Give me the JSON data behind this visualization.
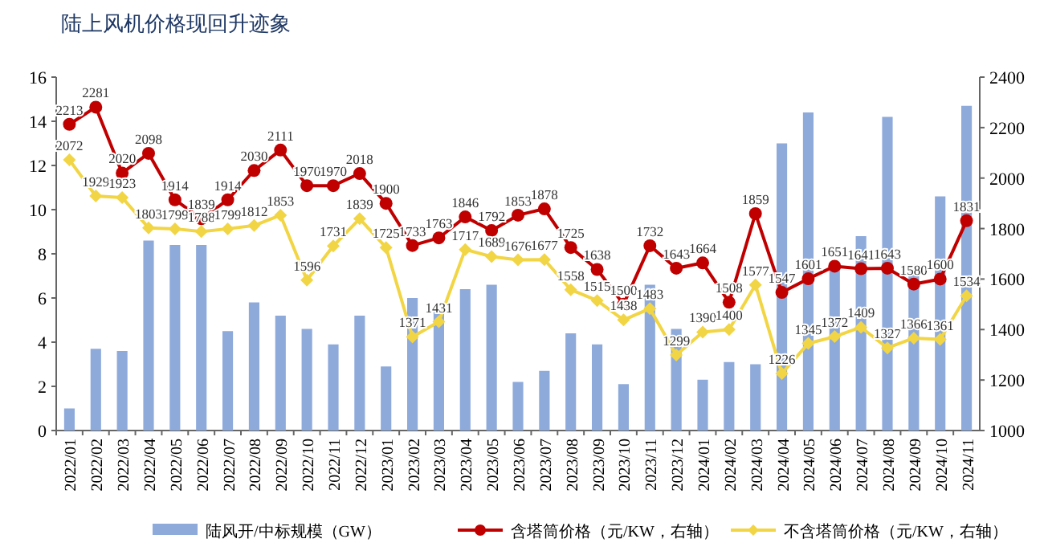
{
  "chart_data": {
    "type": "bar",
    "title": "陆上风机价格现回升迹象",
    "categories": [
      "2022/01",
      "2022/02",
      "2022/03",
      "2022/04",
      "2022/05",
      "2022/06",
      "2022/07",
      "2022/08",
      "2022/09",
      "2022/10",
      "2022/11",
      "2022/12",
      "2023/01",
      "2023/02",
      "2023/03",
      "2023/04",
      "2023/05",
      "2023/06",
      "2023/07",
      "2023/08",
      "2023/09",
      "2023/10",
      "2023/11",
      "2023/12",
      "2024/01",
      "2024/02",
      "2024/03",
      "2024/04",
      "2024/05",
      "2024/06",
      "2024/07",
      "2024/08",
      "2024/09",
      "2024/10",
      "2024/11"
    ],
    "series": [
      {
        "name": "陆风开/中标规模（GW）",
        "color": "#8eaadb",
        "values": [
          1.0,
          3.7,
          3.6,
          8.6,
          8.4,
          8.4,
          4.5,
          5.8,
          5.2,
          4.6,
          3.9,
          5.2,
          2.9,
          6.0,
          5.5,
          6.4,
          6.6,
          2.2,
          2.7,
          4.4,
          3.9,
          2.1,
          6.6,
          4.6,
          2.3,
          3.1,
          3.0,
          13.0,
          14.4,
          7.3,
          8.8,
          14.2,
          7.5,
          10.6,
          14.7
        ]
      },
      {
        "name": "含塔筒价格（元/KW，右轴）",
        "type": "line",
        "axis": "y2",
        "color": "#c00000",
        "marker": "circle",
        "values": [
          2213,
          2281,
          2020,
          2098,
          1914,
          1839,
          1914,
          2030,
          2111,
          1970,
          1970,
          2018,
          1900,
          1733,
          1763,
          1846,
          1792,
          1853,
          1878,
          1725,
          1638,
          1500,
          1732,
          1643,
          1664,
          1508,
          1859,
          1547,
          1601,
          1651,
          1641,
          1643,
          1580,
          1600,
          1831
        ],
        "value_labels": [
          "2213",
          "2281",
          "2020",
          "2098",
          "1914",
          "1839",
          "1914",
          "2030",
          "2111",
          "1970",
          "1970",
          "2018",
          "1900",
          "1733",
          "1763",
          "1846",
          "1792",
          "1853",
          "1878",
          "1725",
          "1638",
          "1500",
          "1732",
          "1643",
          "1664",
          "1508",
          "1859",
          "1547",
          "1601",
          "1651",
          "1641",
          "1643",
          "1580",
          "1600",
          "1831"
        ]
      },
      {
        "name": "不含塔筒价格（元/KW，右轴）",
        "type": "line",
        "axis": "y2",
        "color": "#f2d544",
        "marker": "diamond",
        "values": [
          2072,
          1929,
          1923,
          1803,
          1799,
          1788,
          1799,
          1812,
          1853,
          1596,
          1731,
          1839,
          1725,
          1371,
          1431,
          1717,
          1689,
          1676,
          1677,
          1558,
          1515,
          1438,
          1483,
          1299,
          1390,
          1400,
          1577,
          1226,
          1345,
          1372,
          1409,
          1327,
          1366,
          1361,
          1534
        ],
        "value_labels": [
          "2072",
          "1929",
          "1923",
          "1803",
          "1799",
          "1788",
          "1799",
          "1812",
          "1853",
          "1596",
          "1731",
          "1839",
          "1725",
          "1371",
          "1431",
          "1717",
          "1689",
          "1676",
          "1677",
          "1558",
          "1515",
          "1438",
          "1483",
          "1299",
          "1390",
          "1400",
          "1577",
          "1226",
          "1345",
          "1372",
          "1409",
          "1327",
          "1366",
          "1361",
          "1534"
        ]
      }
    ],
    "ylim": [
      0,
      16
    ],
    "yticks": [
      0,
      2,
      4,
      6,
      8,
      10,
      12,
      14,
      16
    ],
    "y2lim": [
      1000,
      2400
    ],
    "y2ticks": [
      1000,
      1200,
      1400,
      1600,
      1800,
      2000,
      2200,
      2400
    ],
    "legend": "bottom",
    "grid": false
  }
}
